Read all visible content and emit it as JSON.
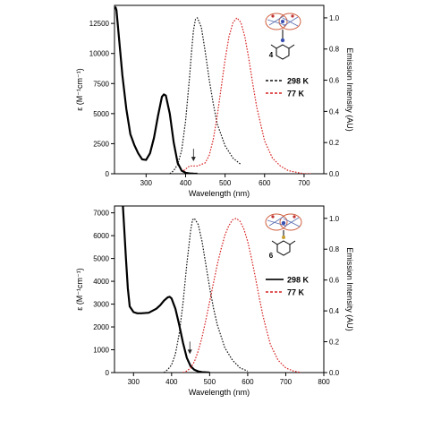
{
  "chart_data": [
    {
      "type": "line",
      "xlabel": "Wavelength (nm)",
      "ylabel": "ε (M⁻¹cm⁻¹)",
      "y2label": "Emission Intensity (AU)",
      "xlim": [
        220,
        750
      ],
      "ylim": [
        0,
        14000
      ],
      "y2lim": [
        0,
        1.08
      ],
      "xticks": [
        "300",
        "400",
        "500",
        "600",
        "700"
      ],
      "xtick_values": [
        300,
        400,
        500,
        600,
        700
      ],
      "yticks": [
        "0",
        "2500",
        "5000",
        "7500",
        "10000",
        "12500"
      ],
      "ytick_values": [
        0,
        2500,
        5000,
        7500,
        10000,
        12500
      ],
      "y2ticks": [
        "0.0",
        "0.2",
        "0.4",
        "0.6",
        "0.8",
        "1.0"
      ],
      "y2tick_values": [
        0,
        0.2,
        0.4,
        0.6,
        0.8,
        1.0
      ],
      "compound_label": "4",
      "arrow_at": {
        "x": 420,
        "y": 0.08
      },
      "legend": [
        {
          "label": "298 K",
          "color": "#111111",
          "dash": "3,2"
        },
        {
          "label": "77 K",
          "color": "#d62020",
          "dash": "3,2"
        }
      ],
      "series": [
        {
          "axis": "left",
          "color": "#000000",
          "dash": "",
          "width": 2.2,
          "x": [
            222,
            225,
            230,
            240,
            250,
            260,
            270,
            280,
            290,
            300,
            310,
            320,
            330,
            340,
            345,
            350,
            360,
            370,
            380,
            390,
            400,
            410,
            420,
            430
          ],
          "y": [
            13900,
            13600,
            11800,
            8200,
            5400,
            3300,
            2400,
            1700,
            1200,
            1150,
            1700,
            3000,
            4800,
            6400,
            6600,
            6500,
            5000,
            2600,
            900,
            250,
            80,
            30,
            10,
            0
          ]
        },
        {
          "axis": "right",
          "color": "#111111",
          "dash": "1.6,1.6",
          "width": 1.2,
          "x": [
            360,
            370,
            380,
            390,
            400,
            410,
            415,
            420,
            425,
            430,
            440,
            450,
            460,
            470,
            480,
            500,
            520,
            540
          ],
          "y": [
            0,
            0.02,
            0.06,
            0.15,
            0.34,
            0.62,
            0.78,
            0.92,
            0.99,
            1.0,
            0.94,
            0.78,
            0.6,
            0.45,
            0.32,
            0.18,
            0.1,
            0.06
          ]
        },
        {
          "axis": "right",
          "color": "#d62020",
          "dash": "1.6,1.6",
          "width": 1.2,
          "x": [
            395,
            400,
            410,
            420,
            430,
            440,
            450,
            460,
            470,
            480,
            490,
            500,
            510,
            520,
            530,
            540,
            550,
            560,
            570,
            580,
            600,
            620,
            640,
            660,
            680,
            700,
            720
          ],
          "y": [
            0.02,
            0.03,
            0.05,
            0.05,
            0.05,
            0.06,
            0.07,
            0.12,
            0.22,
            0.37,
            0.55,
            0.73,
            0.88,
            0.97,
            1.0,
            0.97,
            0.88,
            0.74,
            0.58,
            0.43,
            0.21,
            0.1,
            0.05,
            0.02,
            0.01,
            0,
            0
          ]
        }
      ]
    },
    {
      "type": "line",
      "xlabel": "Wavelength (nm)",
      "ylabel": "ε (M⁻¹cm⁻¹)",
      "y2label": "Emission Intensity (AU)",
      "xlim": [
        250,
        800
      ],
      "ylim": [
        0,
        7300
      ],
      "y2lim": [
        0,
        1.08
      ],
      "xticks": [
        "300",
        "400",
        "500",
        "600",
        "700",
        "800"
      ],
      "xtick_values": [
        300,
        400,
        500,
        600,
        700,
        800
      ],
      "yticks": [
        "0",
        "1000",
        "2000",
        "3000",
        "4000",
        "5000",
        "6000",
        "7000"
      ],
      "ytick_values": [
        0,
        1000,
        2000,
        3000,
        4000,
        5000,
        6000,
        7000
      ],
      "y2ticks": [
        "0.0",
        "0.2",
        "0.4",
        "0.6",
        "0.8",
        "1.0"
      ],
      "y2tick_values": [
        0,
        0.2,
        0.4,
        0.6,
        0.8,
        1.0
      ],
      "compound_label": "6",
      "arrow_at": {
        "x": 448,
        "y": 0.12
      },
      "legend": [
        {
          "label": "298 K",
          "color": "#111111",
          "dash": ""
        },
        {
          "label": "77 K",
          "color": "#d62020",
          "dash": "3,2"
        }
      ],
      "series": [
        {
          "axis": "left",
          "color": "#000000",
          "dash": "",
          "width": 2.2,
          "x": [
            272,
            275,
            280,
            285,
            290,
            300,
            310,
            320,
            340,
            360,
            370,
            380,
            390,
            395,
            400,
            410,
            420,
            430,
            440,
            450,
            460,
            470,
            480,
            500
          ],
          "y": [
            7300,
            6500,
            5000,
            3700,
            2900,
            2650,
            2600,
            2600,
            2620,
            2800,
            2950,
            3150,
            3300,
            3320,
            3250,
            2800,
            2100,
            1300,
            650,
            280,
            120,
            50,
            20,
            0
          ]
        },
        {
          "axis": "right",
          "color": "#111111",
          "dash": "1.6,1.6",
          "width": 1.2,
          "x": [
            380,
            390,
            400,
            410,
            420,
            430,
            440,
            450,
            455,
            460,
            470,
            480,
            490,
            500,
            510,
            520,
            540,
            560,
            580,
            600
          ],
          "y": [
            0,
            0.02,
            0.05,
            0.12,
            0.25,
            0.45,
            0.7,
            0.92,
            0.99,
            1.0,
            0.96,
            0.85,
            0.7,
            0.55,
            0.42,
            0.31,
            0.16,
            0.08,
            0.03,
            0.01
          ]
        },
        {
          "axis": "right",
          "color": "#d62020",
          "dash": "1.6,1.6",
          "width": 1.2,
          "x": [
            430,
            440,
            450,
            460,
            470,
            480,
            490,
            500,
            510,
            520,
            530,
            540,
            550,
            560,
            570,
            580,
            590,
            600,
            610,
            620,
            630,
            640,
            650,
            660,
            680,
            700,
            720,
            740
          ],
          "y": [
            0,
            0.01,
            0.03,
            0.07,
            0.14,
            0.23,
            0.34,
            0.46,
            0.58,
            0.7,
            0.8,
            0.89,
            0.95,
            0.99,
            1.0,
            0.98,
            0.93,
            0.85,
            0.74,
            0.62,
            0.49,
            0.37,
            0.27,
            0.18,
            0.08,
            0.03,
            0.01,
            0
          ]
        }
      ]
    }
  ]
}
